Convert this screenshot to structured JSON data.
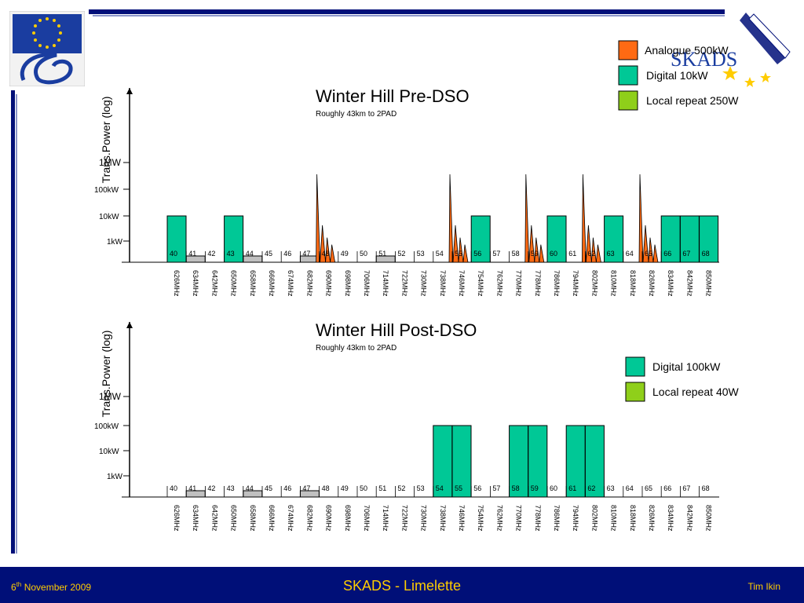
{
  "footer": {
    "date_prefix": "6",
    "date_sup": "th",
    "date_rest": " November 2009",
    "title": "SKADS - Limelette",
    "author": "Tim Ikin"
  },
  "logos": {
    "left": "eu-fp6-logo",
    "right_text": "SKADS"
  },
  "colors": {
    "analogue": "#ff6a13",
    "digital": "#00c896",
    "local": "#8fcf1a",
    "unused": "#c0c0c0",
    "navy": "#000f78",
    "gold": "#ffcc00"
  },
  "chart_data": [
    {
      "type": "bar",
      "title": "Winter Hill Pre-DSO",
      "subtitle": "Roughly 43km to 2PAD",
      "ylabel": "Trans.Power (log)",
      "y_scale": "log",
      "y_ticks": [
        "1MW",
        "100kW",
        "10kW",
        "1kW"
      ],
      "channels": [
        "40",
        "41",
        "42",
        "43",
        "44",
        "45",
        "46",
        "47",
        "48",
        "49",
        "50",
        "51",
        "52",
        "53",
        "54",
        "55",
        "56",
        "57",
        "58",
        "59",
        "60",
        "61",
        "62",
        "63",
        "64",
        "65",
        "66",
        "67",
        "68"
      ],
      "frequencies": [
        "626MHz",
        "634MHz",
        "642MHz",
        "650MHz",
        "658MHz",
        "666MHz",
        "674MHz",
        "682MHz",
        "690MHz",
        "698MHz",
        "706MHz",
        "714MHz",
        "722MHz",
        "730MHz",
        "738MHz",
        "746MHz",
        "754MHz",
        "762MHz",
        "770MHz",
        "778MHz",
        "786MHz",
        "794MHz",
        "802MHz",
        "810MHz",
        "818MHz",
        "826MHz",
        "834MHz",
        "842MHz",
        "850MHz"
      ],
      "legend": [
        {
          "label": "Analogue 500kW",
          "color": "#ff6a13"
        },
        {
          "label": "Digital 10kW",
          "color": "#00c896"
        },
        {
          "label": "Local repeat 250W",
          "color": "#8fcf1a"
        }
      ],
      "digital_channels": [
        "40",
        "43",
        "56",
        "60",
        "63",
        "66",
        "67",
        "68"
      ],
      "digital_level": "10kW",
      "analogue_channels": [
        "48",
        "55",
        "59",
        "62",
        "65"
      ],
      "analogue_level": "500kW",
      "unused_channels": [
        "41",
        "44",
        "47",
        "51"
      ]
    },
    {
      "type": "bar",
      "title": "Winter Hill Post-DSO",
      "subtitle": "Roughly 43km to 2PAD",
      "ylabel": "Trans.Power (log)",
      "y_scale": "log",
      "y_ticks": [
        "1MW",
        "100kW",
        "10kW",
        "1kW"
      ],
      "channels": [
        "40",
        "41",
        "42",
        "43",
        "44",
        "45",
        "46",
        "47",
        "48",
        "49",
        "50",
        "51",
        "52",
        "53",
        "54",
        "55",
        "56",
        "57",
        "58",
        "59",
        "60",
        "61",
        "62",
        "63",
        "64",
        "65",
        "66",
        "67",
        "68"
      ],
      "frequencies": [
        "626MHz",
        "634MHz",
        "642MHz",
        "650MHz",
        "658MHz",
        "666MHz",
        "674MHz",
        "682MHz",
        "690MHz",
        "698MHz",
        "706MHz",
        "714MHz",
        "722MHz",
        "730MHz",
        "738MHz",
        "746MHz",
        "754MHz",
        "762MHz",
        "770MHz",
        "778MHz",
        "786MHz",
        "794MHz",
        "802MHz",
        "810MHz",
        "818MHz",
        "826MHz",
        "834MHz",
        "842MHz",
        "850MHz"
      ],
      "legend": [
        {
          "label": "Digital 100kW",
          "color": "#00c896"
        },
        {
          "label": "Local repeat 40W",
          "color": "#8fcf1a"
        }
      ],
      "digital_channels": [
        "54",
        "55",
        "58",
        "59",
        "61",
        "62"
      ],
      "digital_level": "100kW",
      "analogue_channels": [],
      "unused_channels": [
        "41",
        "44",
        "47"
      ]
    }
  ]
}
